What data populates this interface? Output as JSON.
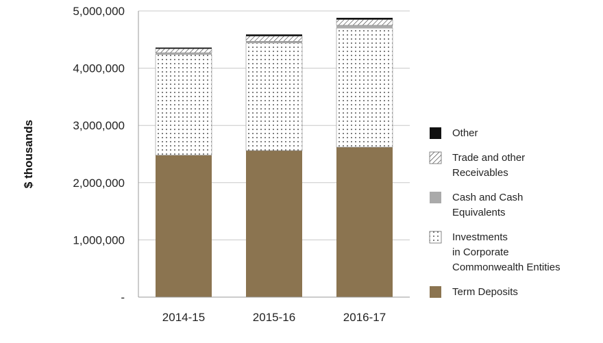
{
  "chart_data": {
    "type": "bar",
    "stacked": true,
    "ylabel": "$ thousands",
    "ylim": [
      0,
      5000000
    ],
    "y_ticks": [
      {
        "value": 0,
        "label": "-"
      },
      {
        "value": 1000000,
        "label": "1,000,000"
      },
      {
        "value": 2000000,
        "label": "2,000,000"
      },
      {
        "value": 3000000,
        "label": "3,000,000"
      },
      {
        "value": 4000000,
        "label": "4,000,000"
      },
      {
        "value": 5000000,
        "label": "5,000,000"
      }
    ],
    "grid": true,
    "legend_position": "right",
    "categories": [
      "2014-15",
      "2015-16",
      "2016-17"
    ],
    "series": [
      {
        "name": "Term Deposits",
        "values": [
          2480000,
          2560000,
          2620000
        ],
        "color": "#8b7450",
        "pattern": "solid"
      },
      {
        "name": "Investments in Corporate Commonwealth Entities",
        "legend_lines": [
          "Investments",
          "in Corporate",
          "Commonwealth Entities"
        ],
        "values": [
          1760000,
          1880000,
          2080000
        ],
        "color": "#ffffff",
        "pattern": "dots"
      },
      {
        "name": "Cash and Cash Equivalents",
        "legend_lines": [
          "Cash and Cash",
          "Equivalents"
        ],
        "values": [
          30000,
          30000,
          50000
        ],
        "color": "#aaaaaa",
        "pattern": "solid"
      },
      {
        "name": "Trade and other Receivables",
        "legend_lines": [
          "Trade and other",
          "Receivables"
        ],
        "values": [
          70000,
          90000,
          100000
        ],
        "color": "#ffffff",
        "pattern": "hatch"
      },
      {
        "name": "Other",
        "values": [
          20000,
          30000,
          30000
        ],
        "color": "#111111",
        "pattern": "solid"
      }
    ]
  }
}
